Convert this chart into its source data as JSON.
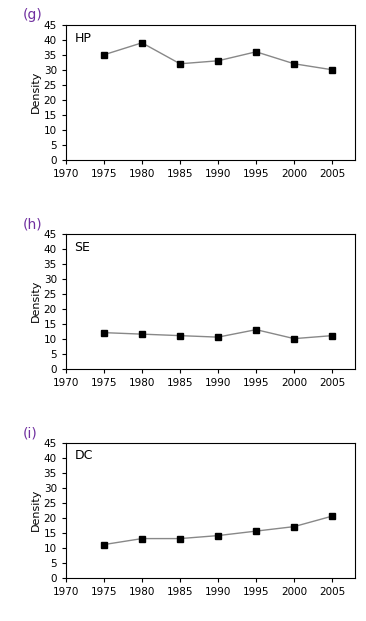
{
  "panels": [
    {
      "label": "(g)",
      "tag": "HP",
      "x": [
        1975,
        1980,
        1985,
        1990,
        1995,
        2000,
        2005
      ],
      "y": [
        35,
        39,
        32,
        33,
        36,
        32,
        30
      ]
    },
    {
      "label": "(h)",
      "tag": "SE",
      "x": [
        1975,
        1980,
        1985,
        1990,
        1995,
        2000,
        2005
      ],
      "y": [
        12,
        11.5,
        11,
        10.5,
        13,
        10,
        11
      ]
    },
    {
      "label": "(i)",
      "tag": "DC",
      "x": [
        1975,
        1980,
        1985,
        1990,
        1995,
        2000,
        2005
      ],
      "y": [
        11,
        13,
        13,
        14,
        15.5,
        17,
        20.5
      ]
    }
  ],
  "ylim": [
    0,
    45
  ],
  "yticks": [
    0,
    5,
    10,
    15,
    20,
    25,
    30,
    35,
    40,
    45
  ],
  "xlim": [
    1970,
    2008
  ],
  "xticks": [
    1970,
    1975,
    1980,
    1985,
    1990,
    1995,
    2000,
    2005
  ],
  "ylabel": "Density",
  "line_color": "#888888",
  "marker": "s",
  "marker_color": "#000000",
  "marker_size": 4,
  "label_color": "#7030a0",
  "tag_fontsize": 9,
  "label_fontsize": 10,
  "tick_fontsize": 7.5,
  "ylabel_fontsize": 8
}
